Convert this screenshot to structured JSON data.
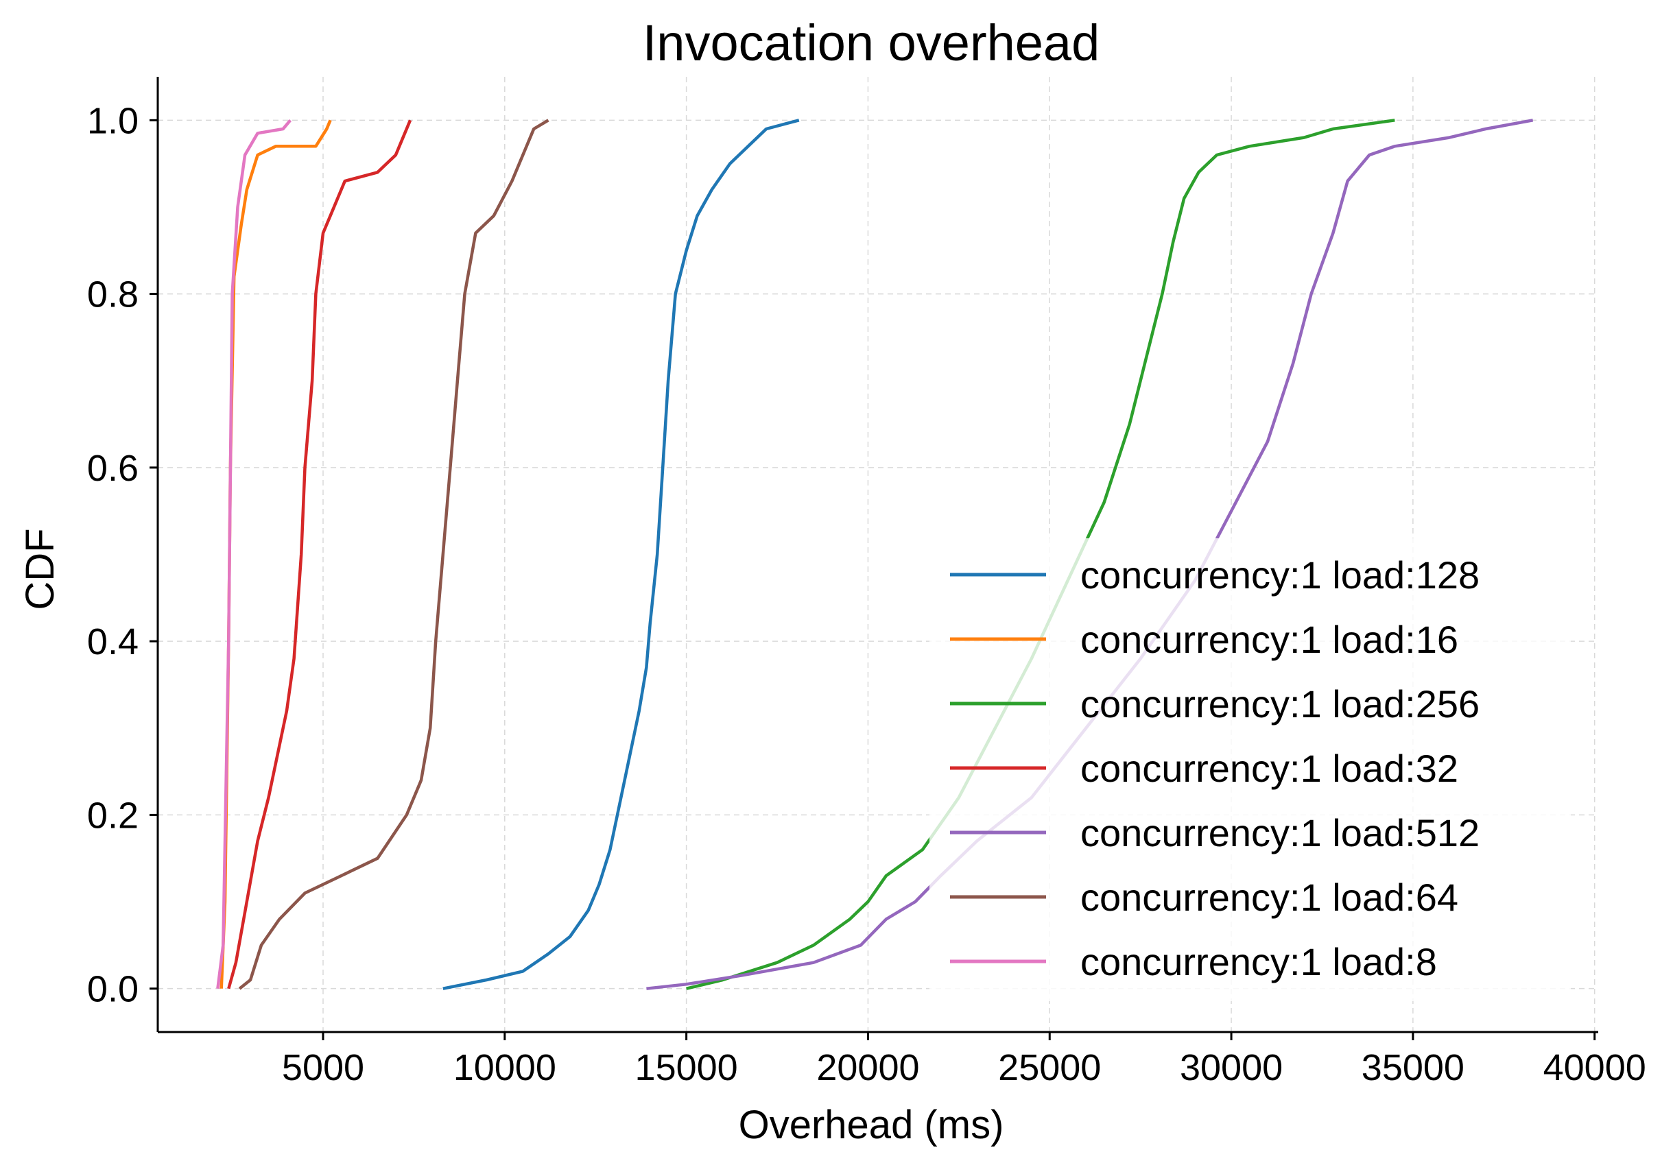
{
  "chart_data": {
    "type": "line",
    "title": "Invocation overhead",
    "xlabel": "Overhead (ms)",
    "ylabel": "CDF",
    "xlim": [
      450,
      40100
    ],
    "ylim": [
      -0.05,
      1.05
    ],
    "xticks": [
      5000,
      10000,
      15000,
      20000,
      25000,
      30000,
      35000,
      40000
    ],
    "yticks": [
      0.0,
      0.2,
      0.4,
      0.6,
      0.8,
      1.0
    ],
    "xtick_labels": [
      "5000",
      "10000",
      "15000",
      "20000",
      "25000",
      "30000",
      "35000",
      "40000"
    ],
    "ytick_labels": [
      "0.0",
      "0.2",
      "0.4",
      "0.6",
      "0.8",
      "1.0"
    ],
    "grid": true,
    "legend_position": "lower right",
    "series": [
      {
        "name": "concurrency:1 load:128",
        "color": "#1f77b4",
        "points": [
          [
            8300,
            0.0
          ],
          [
            9500,
            0.01
          ],
          [
            10500,
            0.02
          ],
          [
            11200,
            0.04
          ],
          [
            11800,
            0.06
          ],
          [
            12300,
            0.09
          ],
          [
            12600,
            0.12
          ],
          [
            12900,
            0.16
          ],
          [
            13100,
            0.2
          ],
          [
            13300,
            0.24
          ],
          [
            13500,
            0.28
          ],
          [
            13700,
            0.32
          ],
          [
            13900,
            0.37
          ],
          [
            14000,
            0.42
          ],
          [
            14200,
            0.5
          ],
          [
            14350,
            0.6
          ],
          [
            14500,
            0.7
          ],
          [
            14700,
            0.8
          ],
          [
            15000,
            0.85
          ],
          [
            15300,
            0.89
          ],
          [
            15700,
            0.92
          ],
          [
            16200,
            0.95
          ],
          [
            16700,
            0.97
          ],
          [
            17200,
            0.99
          ],
          [
            18100,
            1.0
          ]
        ]
      },
      {
        "name": "concurrency:1 load:16",
        "color": "#ff7f0e",
        "points": [
          [
            2200,
            0.0
          ],
          [
            2300,
            0.1
          ],
          [
            2400,
            0.4
          ],
          [
            2450,
            0.6
          ],
          [
            2550,
            0.82
          ],
          [
            2750,
            0.88
          ],
          [
            2900,
            0.92
          ],
          [
            3200,
            0.96
          ],
          [
            3700,
            0.97
          ],
          [
            4800,
            0.97
          ],
          [
            5100,
            0.99
          ],
          [
            5200,
            1.0
          ]
        ]
      },
      {
        "name": "concurrency:1 load:256",
        "color": "#2ca02c",
        "points": [
          [
            15000,
            0.0
          ],
          [
            16000,
            0.01
          ],
          [
            17500,
            0.03
          ],
          [
            18500,
            0.05
          ],
          [
            19500,
            0.08
          ],
          [
            20000,
            0.1
          ],
          [
            20500,
            0.13
          ],
          [
            21500,
            0.16
          ],
          [
            22500,
            0.22
          ],
          [
            23500,
            0.3
          ],
          [
            24500,
            0.38
          ],
          [
            25500,
            0.47
          ],
          [
            26500,
            0.56
          ],
          [
            27200,
            0.65
          ],
          [
            27800,
            0.75
          ],
          [
            28100,
            0.8
          ],
          [
            28400,
            0.86
          ],
          [
            28700,
            0.91
          ],
          [
            29100,
            0.94
          ],
          [
            29600,
            0.96
          ],
          [
            30500,
            0.97
          ],
          [
            32000,
            0.98
          ],
          [
            32800,
            0.99
          ],
          [
            34500,
            1.0
          ]
        ]
      },
      {
        "name": "concurrency:1 load:32",
        "color": "#d62728",
        "points": [
          [
            2400,
            0.0
          ],
          [
            2600,
            0.03
          ],
          [
            2900,
            0.1
          ],
          [
            3200,
            0.17
          ],
          [
            3500,
            0.22
          ],
          [
            3800,
            0.28
          ],
          [
            4000,
            0.32
          ],
          [
            4200,
            0.38
          ],
          [
            4400,
            0.5
          ],
          [
            4500,
            0.6
          ],
          [
            4700,
            0.7
          ],
          [
            4800,
            0.8
          ],
          [
            5000,
            0.87
          ],
          [
            5300,
            0.9
          ],
          [
            5600,
            0.93
          ],
          [
            6500,
            0.94
          ],
          [
            7000,
            0.96
          ],
          [
            7200,
            0.98
          ],
          [
            7400,
            1.0
          ]
        ]
      },
      {
        "name": "concurrency:1 load:512",
        "color": "#9467bd",
        "points": [
          [
            13900,
            0.0
          ],
          [
            15000,
            0.005
          ],
          [
            16500,
            0.015
          ],
          [
            18500,
            0.03
          ],
          [
            19800,
            0.05
          ],
          [
            20500,
            0.08
          ],
          [
            21300,
            0.1
          ],
          [
            22000,
            0.13
          ],
          [
            23000,
            0.17
          ],
          [
            24500,
            0.22
          ],
          [
            26000,
            0.3
          ],
          [
            27500,
            0.38
          ],
          [
            29000,
            0.47
          ],
          [
            30000,
            0.55
          ],
          [
            31000,
            0.63
          ],
          [
            31700,
            0.72
          ],
          [
            32200,
            0.8
          ],
          [
            32800,
            0.87
          ],
          [
            33200,
            0.93
          ],
          [
            33800,
            0.96
          ],
          [
            34500,
            0.97
          ],
          [
            36000,
            0.98
          ],
          [
            37000,
            0.99
          ],
          [
            38300,
            1.0
          ]
        ]
      },
      {
        "name": "concurrency:1 load:64",
        "color": "#8c564b",
        "points": [
          [
            2700,
            0.0
          ],
          [
            3000,
            0.01
          ],
          [
            3300,
            0.05
          ],
          [
            3800,
            0.08
          ],
          [
            4500,
            0.11
          ],
          [
            5500,
            0.13
          ],
          [
            6500,
            0.15
          ],
          [
            7300,
            0.2
          ],
          [
            7700,
            0.24
          ],
          [
            7950,
            0.3
          ],
          [
            8100,
            0.4
          ],
          [
            8300,
            0.5
          ],
          [
            8500,
            0.6
          ],
          [
            8700,
            0.7
          ],
          [
            8900,
            0.8
          ],
          [
            9200,
            0.87
          ],
          [
            9700,
            0.89
          ],
          [
            10200,
            0.93
          ],
          [
            10500,
            0.96
          ],
          [
            10800,
            0.99
          ],
          [
            11200,
            1.0
          ]
        ]
      },
      {
        "name": "concurrency:1 load:8",
        "color": "#e377c2",
        "points": [
          [
            2100,
            0.0
          ],
          [
            2250,
            0.05
          ],
          [
            2400,
            0.4
          ],
          [
            2500,
            0.8
          ],
          [
            2650,
            0.9
          ],
          [
            2850,
            0.96
          ],
          [
            3200,
            0.985
          ],
          [
            3900,
            0.99
          ],
          [
            4100,
            1.0
          ]
        ]
      }
    ]
  }
}
